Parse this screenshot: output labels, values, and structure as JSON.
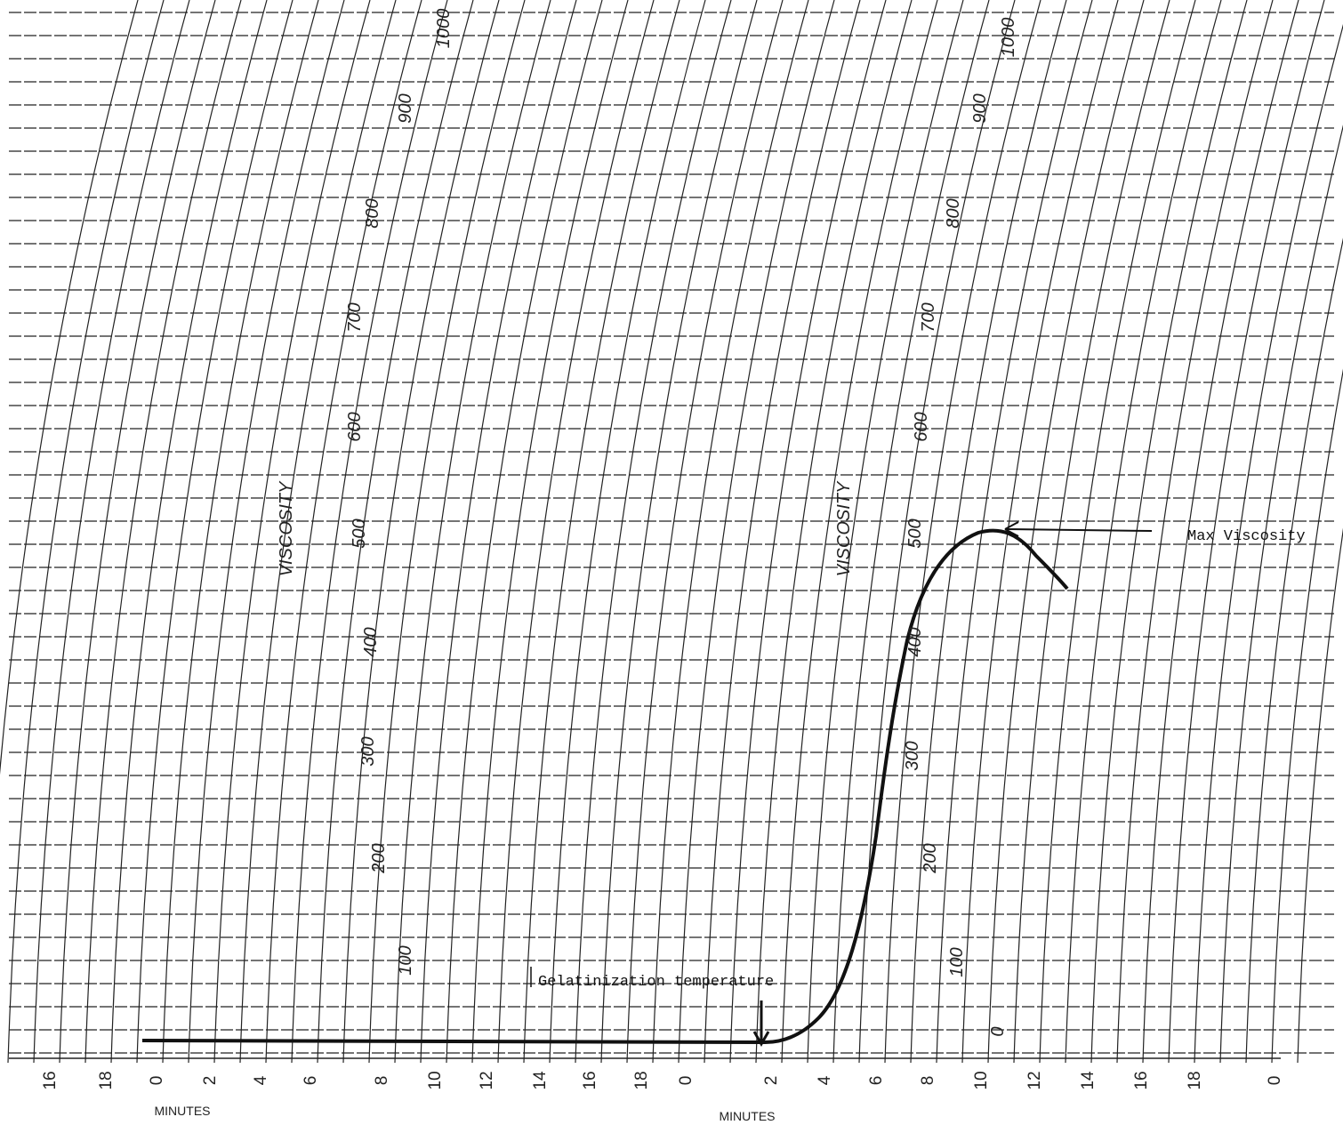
{
  "left_scale": {
    "axis_label": "VISCOSITY",
    "labels": [
      "100",
      "200",
      "300",
      "400",
      "500",
      "600",
      "700",
      "800",
      "900",
      "1000"
    ]
  },
  "right_scale": {
    "axis_label": "VISCOSITY",
    "labels": [
      "0",
      "100",
      "200",
      "300",
      "400",
      "500",
      "600",
      "700",
      "800",
      "900",
      "1000"
    ]
  },
  "minute_axes": {
    "captions": [
      "MINUTES",
      "MINUTES"
    ],
    "ticks": [
      "16",
      "18",
      "0",
      "2",
      "4",
      "6",
      "8",
      "10",
      "12",
      "14",
      "16",
      "18",
      "0",
      "2",
      "4",
      "6",
      "8",
      "10",
      "12",
      "14",
      "16",
      "18",
      "0"
    ]
  },
  "annotations": {
    "max": "Max Viscosity",
    "gelatinization": "Gelatinization temperature"
  }
}
